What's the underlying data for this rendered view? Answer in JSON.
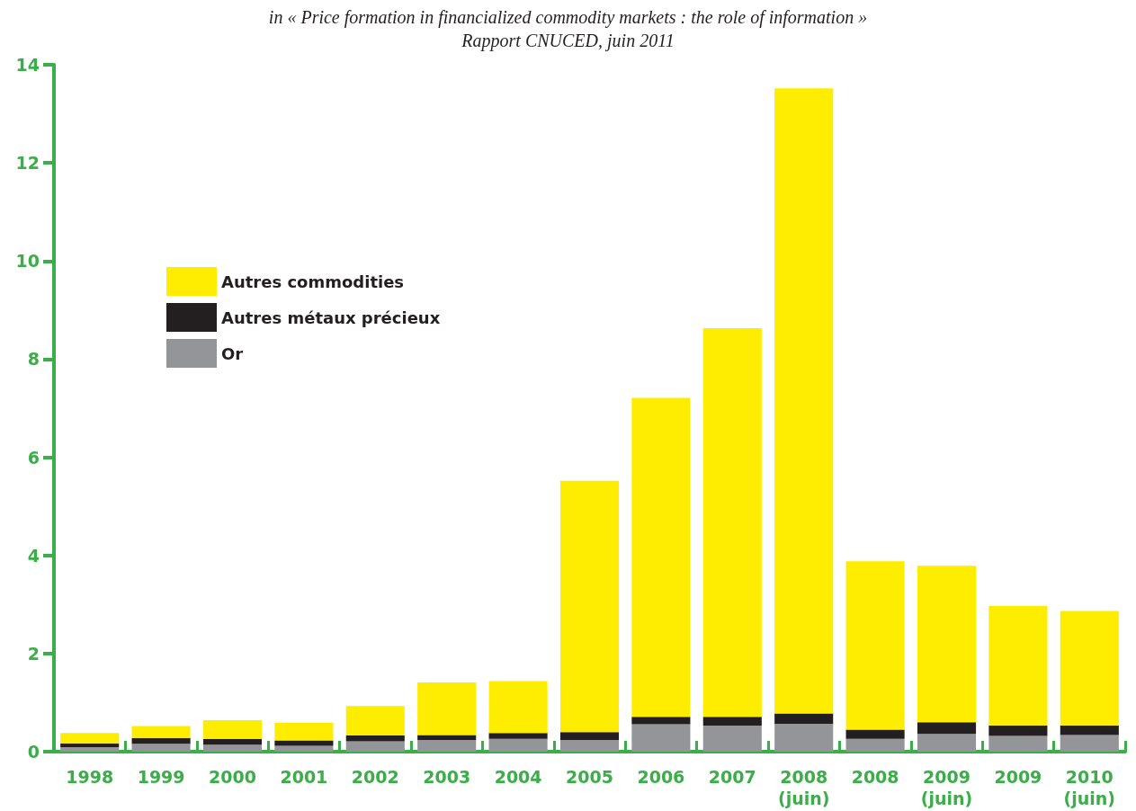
{
  "chart_data": {
    "type": "bar",
    "title": "in « Price formation in financialized commodity markets : the role of information »",
    "subtitle": "Rapport CNUCED, juin 2011",
    "categories": [
      "1998",
      "1999",
      "2000",
      "2001",
      "2002",
      "2003",
      "2004",
      "2005",
      "2006",
      "2007",
      "2008\n(juin)",
      "2008",
      "2009\n(juin)",
      "2009",
      "2010\n(juin)"
    ],
    "stacked": true,
    "ylim": [
      0,
      14
    ],
    "yticks": [
      0,
      2,
      4,
      6,
      8,
      10,
      12,
      14
    ],
    "grid": false,
    "legend": "top left",
    "series": [
      {
        "name": "Or",
        "color": "#939598",
        "values": [
          0.09,
          0.16,
          0.14,
          0.12,
          0.21,
          0.24,
          0.26,
          0.24,
          0.56,
          0.53,
          0.57,
          0.26,
          0.36,
          0.32,
          0.34
        ]
      },
      {
        "name": "Autres métaux précieux",
        "color": "#231f20",
        "values": [
          0.08,
          0.12,
          0.12,
          0.11,
          0.12,
          0.1,
          0.12,
          0.16,
          0.15,
          0.18,
          0.21,
          0.19,
          0.24,
          0.21,
          0.19
        ]
      },
      {
        "name": "Autres commodities",
        "color": "#ffed00",
        "values": [
          0.21,
          0.24,
          0.38,
          0.36,
          0.6,
          1.07,
          1.06,
          5.12,
          6.5,
          7.92,
          12.74,
          3.43,
          3.19,
          2.44,
          2.34
        ]
      }
    ]
  }
}
